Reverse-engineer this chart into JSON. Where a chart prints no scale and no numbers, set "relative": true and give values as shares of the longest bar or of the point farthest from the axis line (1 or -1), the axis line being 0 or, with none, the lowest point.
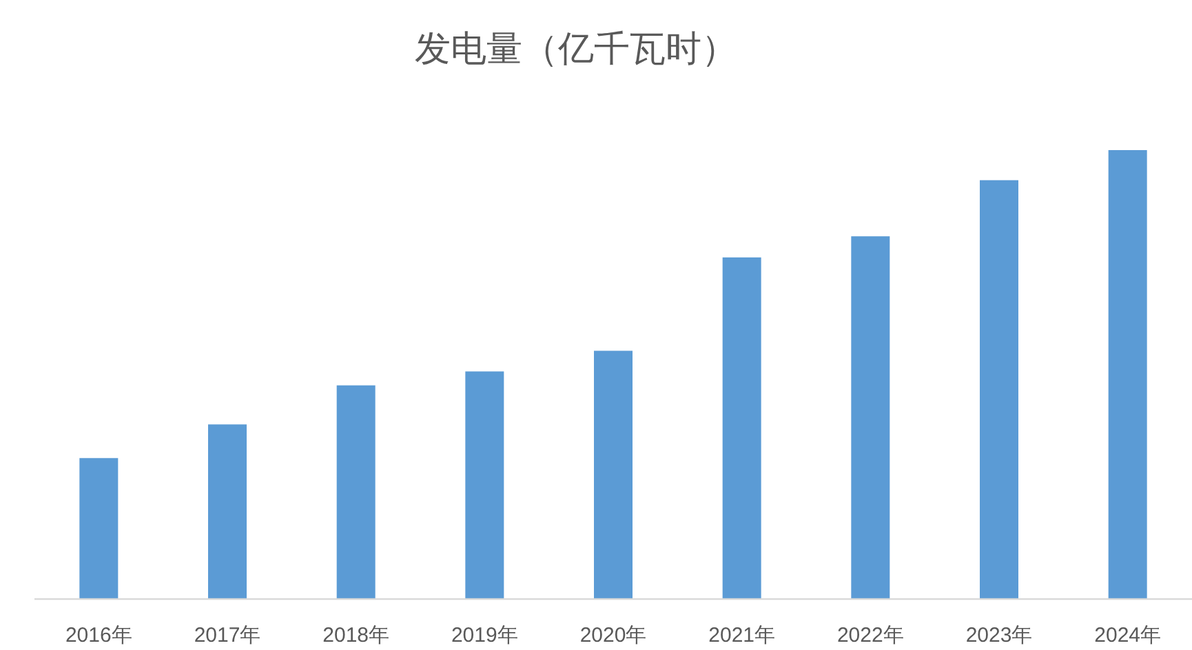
{
  "chart_data": {
    "type": "bar",
    "title": "发电量（亿千瓦时）",
    "categories": [
      "2016年",
      "2017年",
      "2018年",
      "2019年",
      "2020年",
      "2021年",
      "2022年",
      "2023年",
      "2024年"
    ],
    "values": [
      0.314,
      0.389,
      0.476,
      0.507,
      0.553,
      0.761,
      0.808,
      0.933,
      1
    ],
    "color": "#5b9bd5",
    "relative": true
  }
}
